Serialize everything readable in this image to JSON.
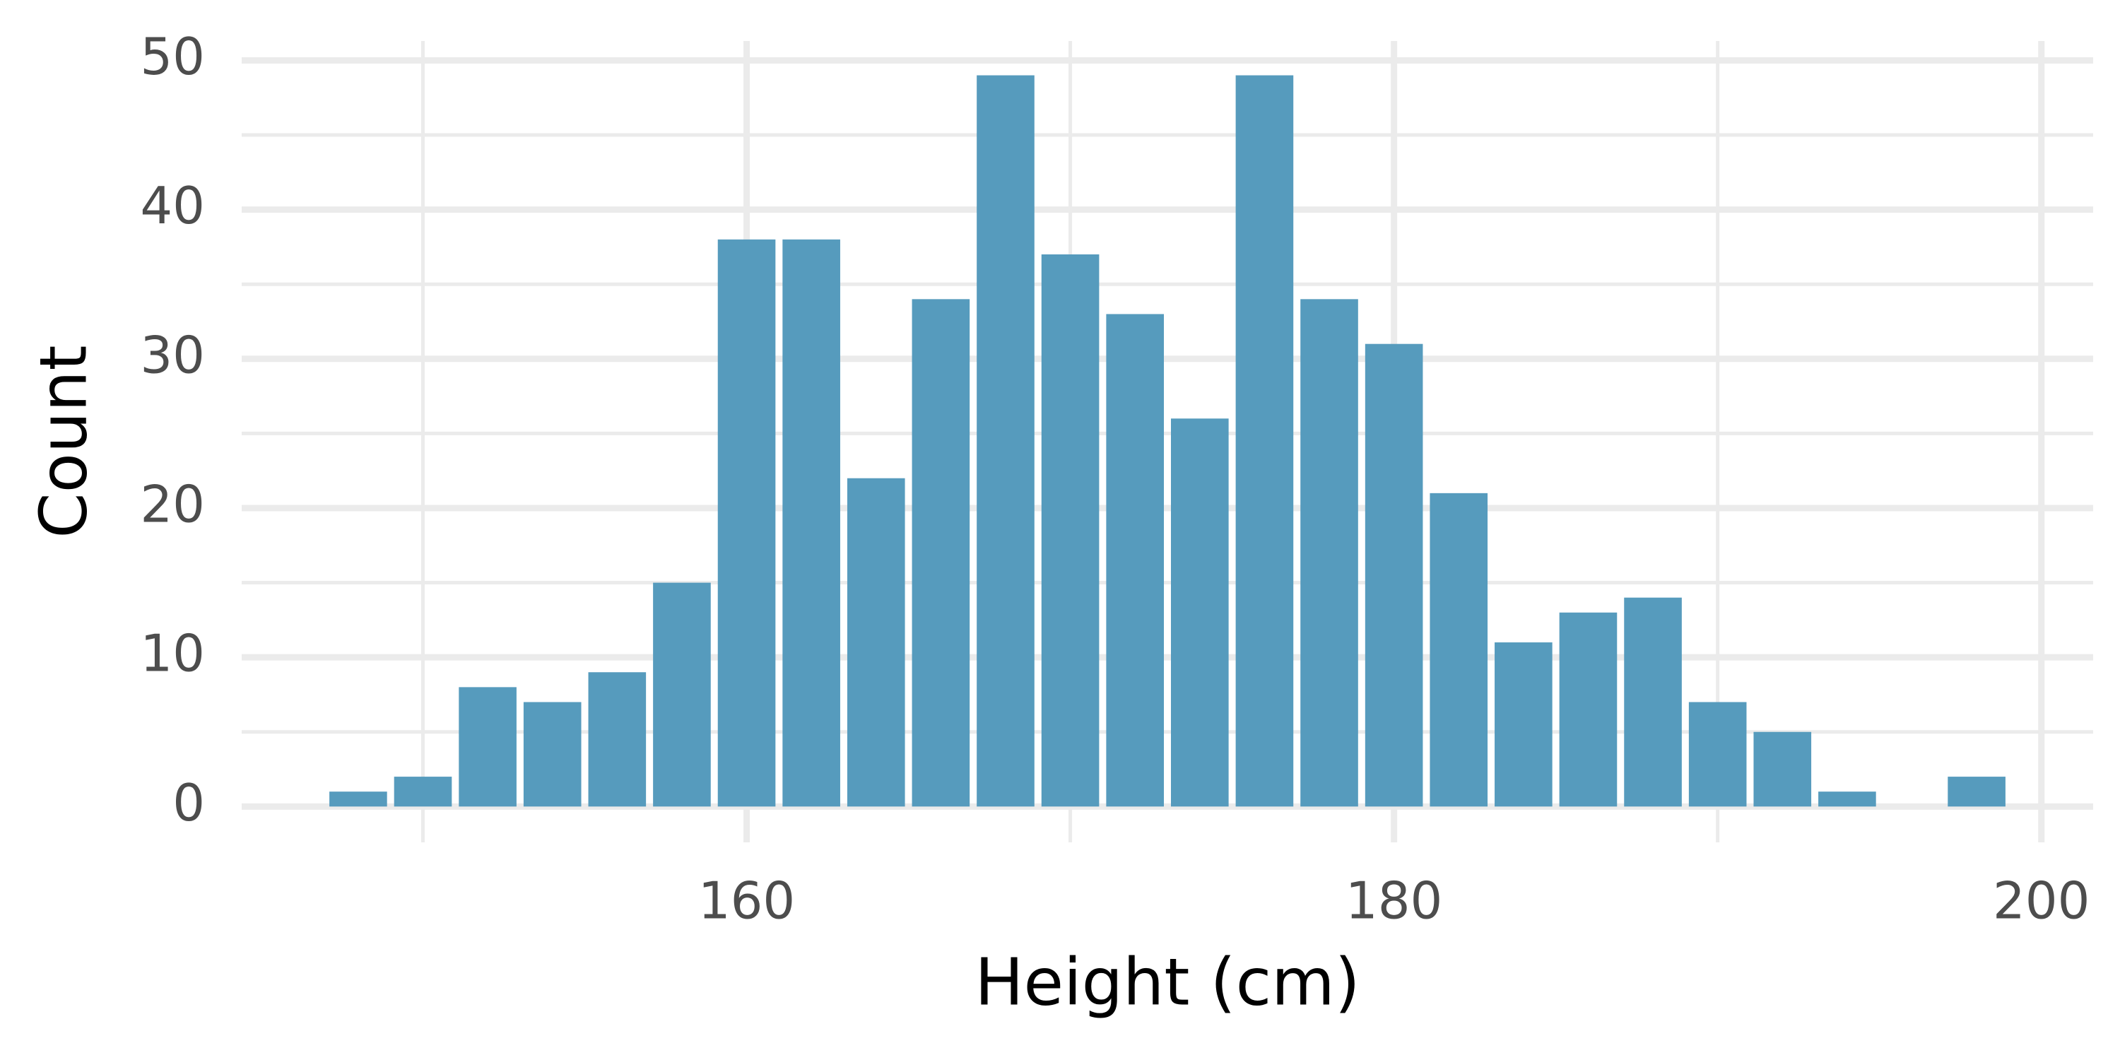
{
  "chart_data": {
    "type": "histogram",
    "x_label": "Height (cm)",
    "y_label": "Count",
    "bins": [
      147,
      149,
      151,
      153,
      155,
      157,
      159,
      161,
      163,
      165,
      167,
      169,
      171,
      173,
      175,
      177,
      179,
      181,
      183,
      185,
      187,
      189,
      191,
      193,
      195,
      197,
      199
    ],
    "counts": [
      1,
      2,
      8,
      7,
      9,
      15,
      38,
      38,
      22,
      34,
      49,
      37,
      33,
      26,
      49,
      34,
      31,
      21,
      11,
      13,
      14,
      7,
      5,
      1,
      0,
      2
    ],
    "color": "#569bbd",
    "xlim": [
      144.4,
      201.6
    ],
    "ylim": [
      -2.4,
      51.3
    ],
    "xticks": [
      160,
      180,
      200
    ],
    "yticks": [
      0,
      10,
      20,
      30,
      40,
      50
    ],
    "x_minor_ticks": [
      150,
      170,
      190
    ],
    "y_minor_ticks": [
      5,
      15,
      25,
      35,
      45
    ],
    "grid": true
  }
}
